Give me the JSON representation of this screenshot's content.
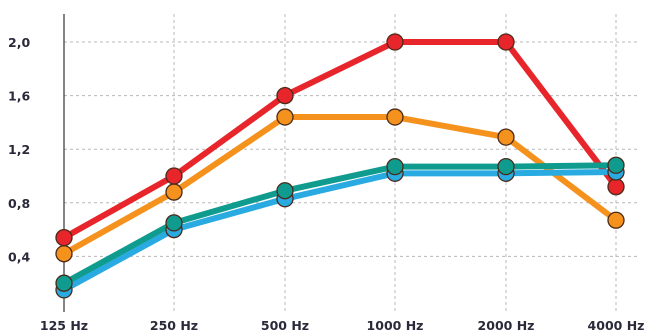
{
  "chart_data": {
    "type": "line",
    "categories": [
      "125 Hz",
      "250 Hz",
      "500 Hz",
      "1000 Hz",
      "2000 Hz",
      "4000 Hz"
    ],
    "y_ticks": [
      "0,4",
      "0,8",
      "1,2",
      "1,6",
      "2,0"
    ],
    "y_tick_values": [
      0.4,
      0.8,
      1.2,
      1.6,
      2.0
    ],
    "ylim": [
      0.0,
      2.2
    ],
    "grid": true,
    "series": [
      {
        "color": "#e8252b",
        "values": [
          0.54,
          1.0,
          1.6,
          2.0,
          2.0,
          0.92
        ]
      },
      {
        "color": "#f5921e",
        "values": [
          0.42,
          0.88,
          1.44,
          1.44,
          1.29,
          0.67
        ]
      },
      {
        "color": "#29aae1",
        "values": [
          0.15,
          0.6,
          0.83,
          1.02,
          1.02,
          1.03
        ]
      },
      {
        "color": "#0f9b8e",
        "values": [
          0.2,
          0.65,
          0.89,
          1.07,
          1.07,
          1.08
        ]
      }
    ]
  }
}
